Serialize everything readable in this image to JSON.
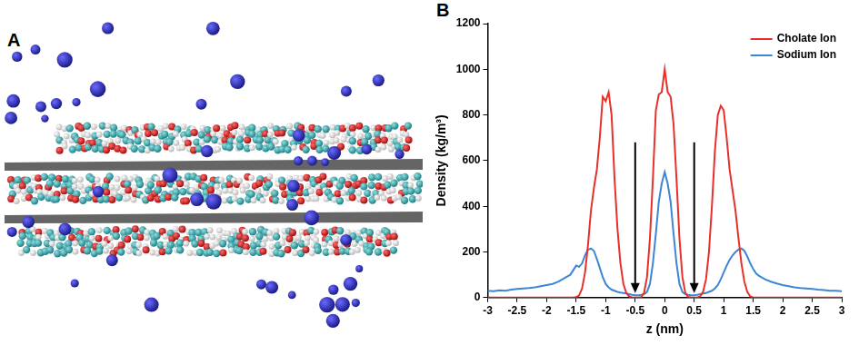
{
  "panel_a": {
    "label": "A"
  },
  "chart_data": {
    "type": "line",
    "panel_label": "B",
    "x_label": "z (nm)",
    "y_label": "Density (kg/m³)",
    "x": [
      -3,
      -2.9,
      -2.8,
      -2.7,
      -2.6,
      -2.5,
      -2.4,
      -2.3,
      -2.2,
      -2.1,
      -2,
      -1.9,
      -1.8,
      -1.7,
      -1.6,
      -1.55,
      -1.5,
      -1.45,
      -1.4,
      -1.35,
      -1.3,
      -1.25,
      -1.2,
      -1.15,
      -1.1,
      -1.05,
      -1,
      -0.95,
      -0.9,
      -0.85,
      -0.8,
      -0.75,
      -0.7,
      -0.65,
      -0.6,
      -0.55,
      -0.5,
      -0.45,
      -0.4,
      -0.35,
      -0.3,
      -0.25,
      -0.2,
      -0.15,
      -0.1,
      -0.05,
      0,
      0.05,
      0.1,
      0.15,
      0.2,
      0.25,
      0.3,
      0.35,
      0.4,
      0.45,
      0.5,
      0.55,
      0.6,
      0.65,
      0.7,
      0.75,
      0.8,
      0.85,
      0.9,
      0.95,
      1,
      1.05,
      1.1,
      1.15,
      1.2,
      1.25,
      1.3,
      1.35,
      1.4,
      1.45,
      1.5,
      1.55,
      1.6,
      1.7,
      1.8,
      1.9,
      2,
      2.1,
      2.2,
      2.3,
      2.4,
      2.5,
      2.6,
      2.7,
      2.8,
      2.9,
      3
    ],
    "series": [
      {
        "name": "Cholate Ion",
        "color": "#e8302a",
        "values": [
          0,
          0,
          0,
          0,
          0,
          0,
          0,
          0,
          0,
          0,
          0,
          0,
          0,
          0,
          0,
          0,
          2,
          10,
          40,
          110,
          230,
          380,
          480,
          560,
          700,
          880,
          860,
          900,
          800,
          520,
          300,
          150,
          60,
          20,
          5,
          0,
          0,
          0,
          2,
          20,
          90,
          260,
          520,
          820,
          890,
          900,
          1000,
          900,
          880,
          760,
          520,
          260,
          90,
          20,
          3,
          0,
          0,
          0,
          5,
          25,
          80,
          200,
          400,
          640,
          800,
          840,
          820,
          700,
          560,
          470,
          380,
          260,
          150,
          70,
          25,
          5,
          0,
          0,
          0,
          0,
          0,
          0,
          0,
          0,
          0,
          0,
          0,
          0,
          0,
          0,
          0,
          0,
          0
        ]
      },
      {
        "name": "Sodium Ion",
        "color": "#3d85d6",
        "values": [
          30,
          28,
          32,
          30,
          35,
          38,
          40,
          42,
          45,
          50,
          55,
          60,
          70,
          85,
          100,
          120,
          140,
          135,
          150,
          185,
          210,
          215,
          205,
          170,
          130,
          90,
          60,
          45,
          35,
          30,
          25,
          22,
          20,
          18,
          15,
          12,
          10,
          10,
          12,
          15,
          25,
          60,
          150,
          280,
          420,
          500,
          550,
          500,
          420,
          280,
          150,
          60,
          25,
          15,
          12,
          10,
          10,
          12,
          15,
          18,
          20,
          25,
          30,
          40,
          55,
          80,
          110,
          140,
          165,
          185,
          200,
          210,
          215,
          205,
          180,
          150,
          125,
          105,
          95,
          80,
          70,
          62,
          55,
          50,
          45,
          42,
          40,
          38,
          35,
          33,
          30,
          30,
          28
        ]
      }
    ],
    "arrows": [
      {
        "x": -0.5,
        "from": 680,
        "to": 20
      },
      {
        "x": 0.5,
        "from": 680,
        "to": 20
      }
    ],
    "xlim": [
      -3,
      3
    ],
    "xticks": [
      -3,
      -2.5,
      -2,
      -1.5,
      -1,
      -0.5,
      0,
      0.5,
      1,
      1.5,
      2,
      2.5,
      3
    ],
    "ylim": [
      0,
      1200
    ],
    "yticks": [
      0,
      200,
      400,
      600,
      800,
      1000,
      1200
    ],
    "grid": false,
    "legend": "upper right"
  }
}
